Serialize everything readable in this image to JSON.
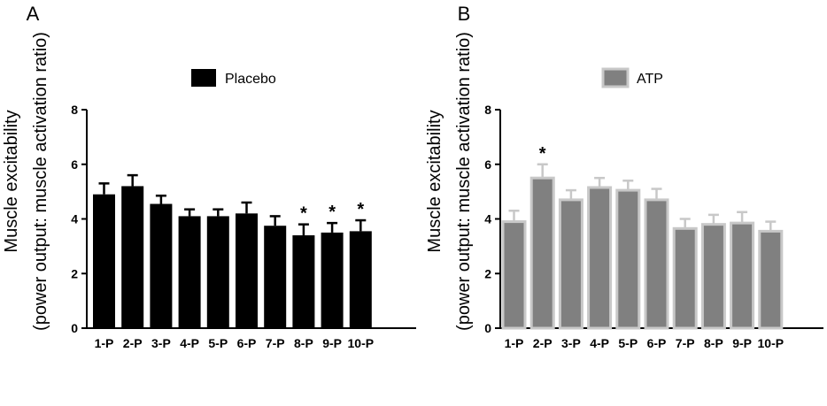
{
  "chart_data": [
    {
      "type": "bar",
      "panel_label": "A",
      "title": "",
      "xlabel": "",
      "ylabel_line1": "Muscle excitability",
      "ylabel_line2": "(power output: muscle activation ratio)",
      "ylim": [
        0,
        8
      ],
      "yticks": [
        0,
        2,
        4,
        6,
        8
      ],
      "categories": [
        "1-P",
        "2-P",
        "3-P",
        "4-P",
        "5-P",
        "6-P",
        "7-P",
        "8-P",
        "9-P",
        "10-P"
      ],
      "series": [
        {
          "name": "Placebo",
          "color": "#000000",
          "values": [
            4.9,
            5.2,
            4.55,
            4.1,
            4.1,
            4.2,
            3.75,
            3.4,
            3.5,
            3.55
          ],
          "errors": [
            0.4,
            0.4,
            0.3,
            0.25,
            0.25,
            0.4,
            0.35,
            0.4,
            0.35,
            0.4
          ],
          "significant": [
            false,
            false,
            false,
            false,
            false,
            false,
            false,
            true,
            true,
            true
          ]
        }
      ],
      "significance_marker": "*",
      "legend": "top-center",
      "grid": false
    },
    {
      "type": "bar",
      "panel_label": "B",
      "title": "",
      "xlabel": "",
      "ylabel_line1": "Muscle excitability",
      "ylabel_line2": "(power output: muscle activation ratio)",
      "ylim": [
        0,
        8
      ],
      "yticks": [
        0,
        2,
        4,
        6,
        8
      ],
      "categories": [
        "1-P",
        "2-P",
        "3-P",
        "4-P",
        "5-P",
        "6-P",
        "7-P",
        "8-P",
        "9-P",
        "10-P"
      ],
      "series": [
        {
          "name": "ATP",
          "color": "#808080",
          "edge_color": "#c8c8c8",
          "values": [
            3.9,
            5.5,
            4.7,
            5.15,
            5.05,
            4.7,
            3.65,
            3.8,
            3.85,
            3.55
          ],
          "errors": [
            0.4,
            0.5,
            0.35,
            0.35,
            0.35,
            0.4,
            0.35,
            0.35,
            0.4,
            0.35
          ],
          "significant": [
            false,
            true,
            false,
            false,
            false,
            false,
            false,
            false,
            false,
            false
          ]
        }
      ],
      "significance_marker": "*",
      "legend": "top-center",
      "grid": false
    }
  ]
}
